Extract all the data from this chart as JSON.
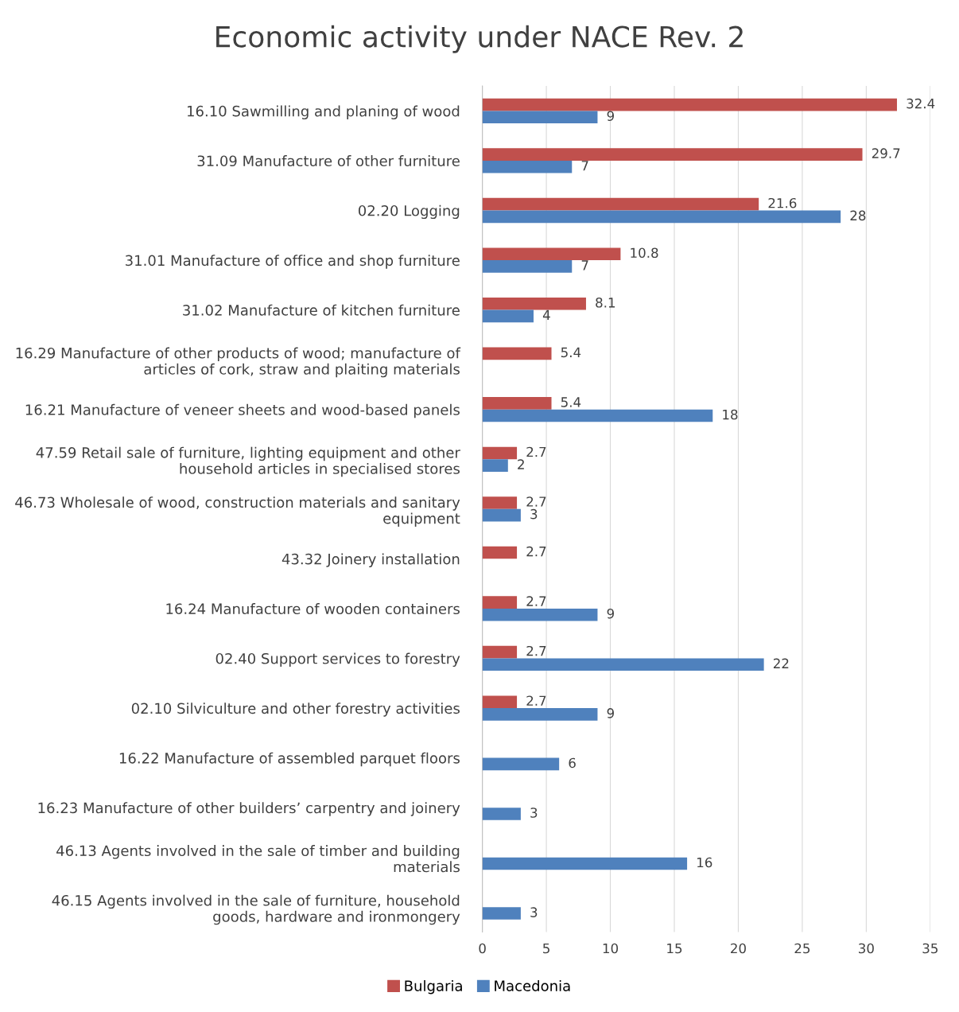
{
  "chart_data": {
    "type": "bar",
    "orientation": "horizontal",
    "title": "Economic activity under NACE Rev. 2",
    "categories": [
      "16.10 Sawmilling and planing of wood",
      "31.09 Manufacture of other furniture",
      "02.20 Logging",
      "31.01 Manufacture of office and shop furniture",
      "31.02 Manufacture of kitchen furniture",
      "16.29 Manufacture of other products of wood; manufacture of\narticles of cork, straw and plaiting materials",
      "16.21 Manufacture of veneer sheets and wood-based panels",
      "47.59 Retail sale of furniture, lighting equipment and other\nhousehold articles in specialised stores",
      "46.73 Wholesale of wood, construction materials and sanitary\nequipment",
      "43.32 Joinery installation",
      "16.24 Manufacture of wooden containers",
      "02.40 Support services to forestry",
      "02.10 Silviculture and other forestry activities",
      "16.22 Manufacture of assembled parquet floors",
      "16.23 Manufacture of other builders’ carpentry and joinery",
      "46.13 Agents involved in the sale of timber and building\nmaterials",
      "46.15 Agents involved in the sale of furniture, household\ngoods, hardware and ironmongery"
    ],
    "series": [
      {
        "name": "Bulgaria",
        "color": "#c0504d",
        "values": [
          32.4,
          29.7,
          21.6,
          10.8,
          8.1,
          5.4,
          5.4,
          2.7,
          2.7,
          2.7,
          2.7,
          2.7,
          2.7,
          null,
          null,
          null,
          null
        ]
      },
      {
        "name": "Macedonia",
        "color": "#4f81bd",
        "values": [
          9,
          7,
          28,
          7,
          4,
          null,
          18,
          2,
          3,
          null,
          9,
          22,
          9,
          6,
          3,
          16,
          3
        ]
      }
    ],
    "xlim": [
      0,
      35
    ],
    "xticks": [
      0,
      5,
      10,
      15,
      20,
      25,
      30,
      35
    ],
    "grid": "x",
    "legend": "bottom",
    "data_labels": true
  }
}
